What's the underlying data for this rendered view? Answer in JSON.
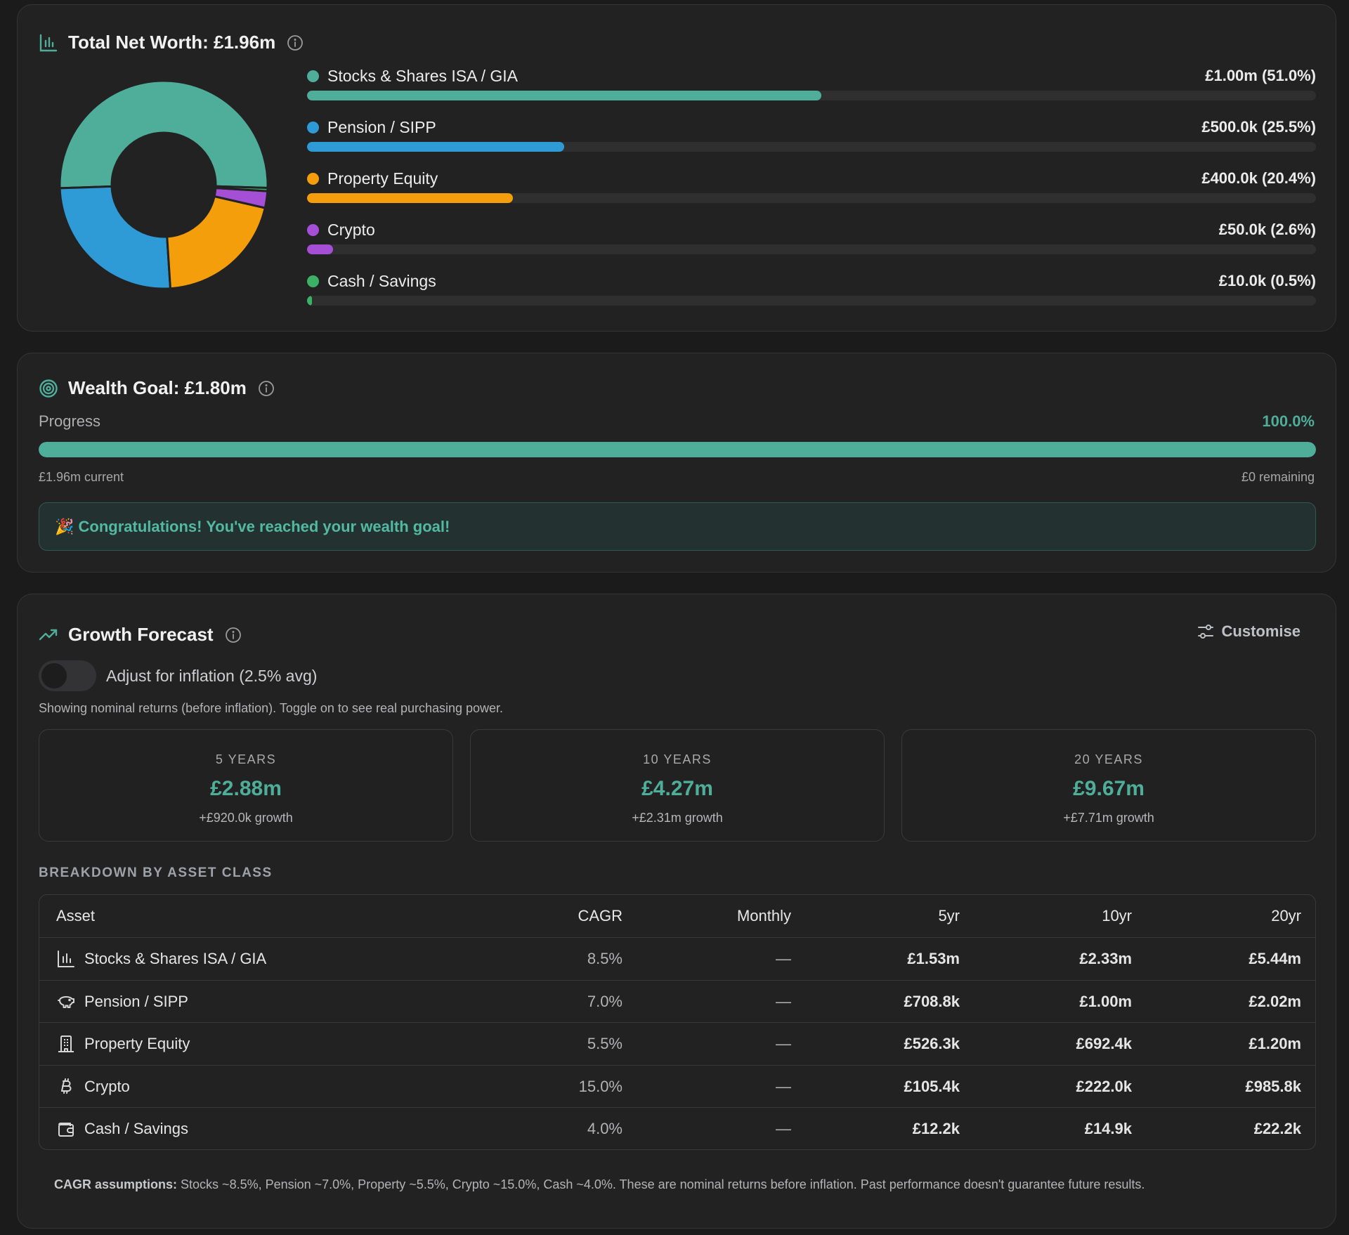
{
  "net_worth": {
    "title": "Total Net Worth: £1.96m",
    "assets": [
      {
        "name": "Stocks & Shares ISA / GIA",
        "value": "£1.00m (51.0%)",
        "pct": 51.0,
        "color": "#4fae9a"
      },
      {
        "name": "Pension / SIPP",
        "value": "£500.0k (25.5%)",
        "pct": 25.5,
        "color": "#2f9bd6"
      },
      {
        "name": "Property Equity",
        "value": "£400.0k (20.4%)",
        "pct": 20.4,
        "color": "#f59e0b"
      },
      {
        "name": "Crypto",
        "value": "£50.0k (2.6%)",
        "pct": 2.6,
        "color": "#a44fd6"
      },
      {
        "name": "Cash / Savings",
        "value": "£10.0k (0.5%)",
        "pct": 0.5,
        "color": "#3cb166"
      }
    ]
  },
  "goal": {
    "title": "Wealth Goal: £1.80m",
    "progress_label": "Progress",
    "progress_pct_text": "100.0%",
    "progress_fraction": 1.0,
    "current": "£1.96m current",
    "remaining": "£0 remaining",
    "congrats": "🎉 Congratulations! You've reached your wealth goal!"
  },
  "forecast": {
    "title": "Growth Forecast",
    "customise_label": "Customise",
    "inflation_label": "Adjust for inflation (2.5% avg)",
    "inflation_on": false,
    "note": "Showing nominal returns (before inflation). Toggle on to see real purchasing power.",
    "projections": [
      {
        "years": "5 YEARS",
        "amount": "£2.88m",
        "growth": "+£920.0k growth"
      },
      {
        "years": "10 YEARS",
        "amount": "£4.27m",
        "growth": "+£2.31m growth"
      },
      {
        "years": "20 YEARS",
        "amount": "£9.67m",
        "growth": "+£7.71m growth"
      }
    ],
    "breakdown_heading": "BREAKDOWN BY ASSET CLASS",
    "columns": {
      "asset": "Asset",
      "cagr": "CAGR",
      "monthly": "Monthly",
      "y5": "5yr",
      "y10": "10yr",
      "y20": "20yr"
    },
    "rows": [
      {
        "icon": "bar-chart-icon",
        "asset": "Stocks & Shares ISA / GIA",
        "cagr": "8.5%",
        "monthly": "—",
        "y5": "£1.53m",
        "y10": "£2.33m",
        "y20": "£5.44m"
      },
      {
        "icon": "piggy-bank-icon",
        "asset": "Pension / SIPP",
        "cagr": "7.0%",
        "monthly": "—",
        "y5": "£708.8k",
        "y10": "£1.00m",
        "y20": "£2.02m"
      },
      {
        "icon": "building-icon",
        "asset": "Property Equity",
        "cagr": "5.5%",
        "monthly": "—",
        "y5": "£526.3k",
        "y10": "£692.4k",
        "y20": "£1.20m"
      },
      {
        "icon": "bitcoin-icon",
        "asset": "Crypto",
        "cagr": "15.0%",
        "monthly": "—",
        "y5": "£105.4k",
        "y10": "£222.0k",
        "y20": "£985.8k"
      },
      {
        "icon": "wallet-icon",
        "asset": "Cash / Savings",
        "cagr": "4.0%",
        "monthly": "—",
        "y5": "£12.2k",
        "y10": "£14.9k",
        "y20": "£22.2k"
      }
    ],
    "footnote_bold": "CAGR assumptions:",
    "footnote_text": " Stocks ~8.5%, Pension ~7.0%, Property ~5.5%, Crypto ~15.0%, Cash ~4.0%. These are nominal returns before inflation. Past performance doesn't guarantee future results."
  }
}
